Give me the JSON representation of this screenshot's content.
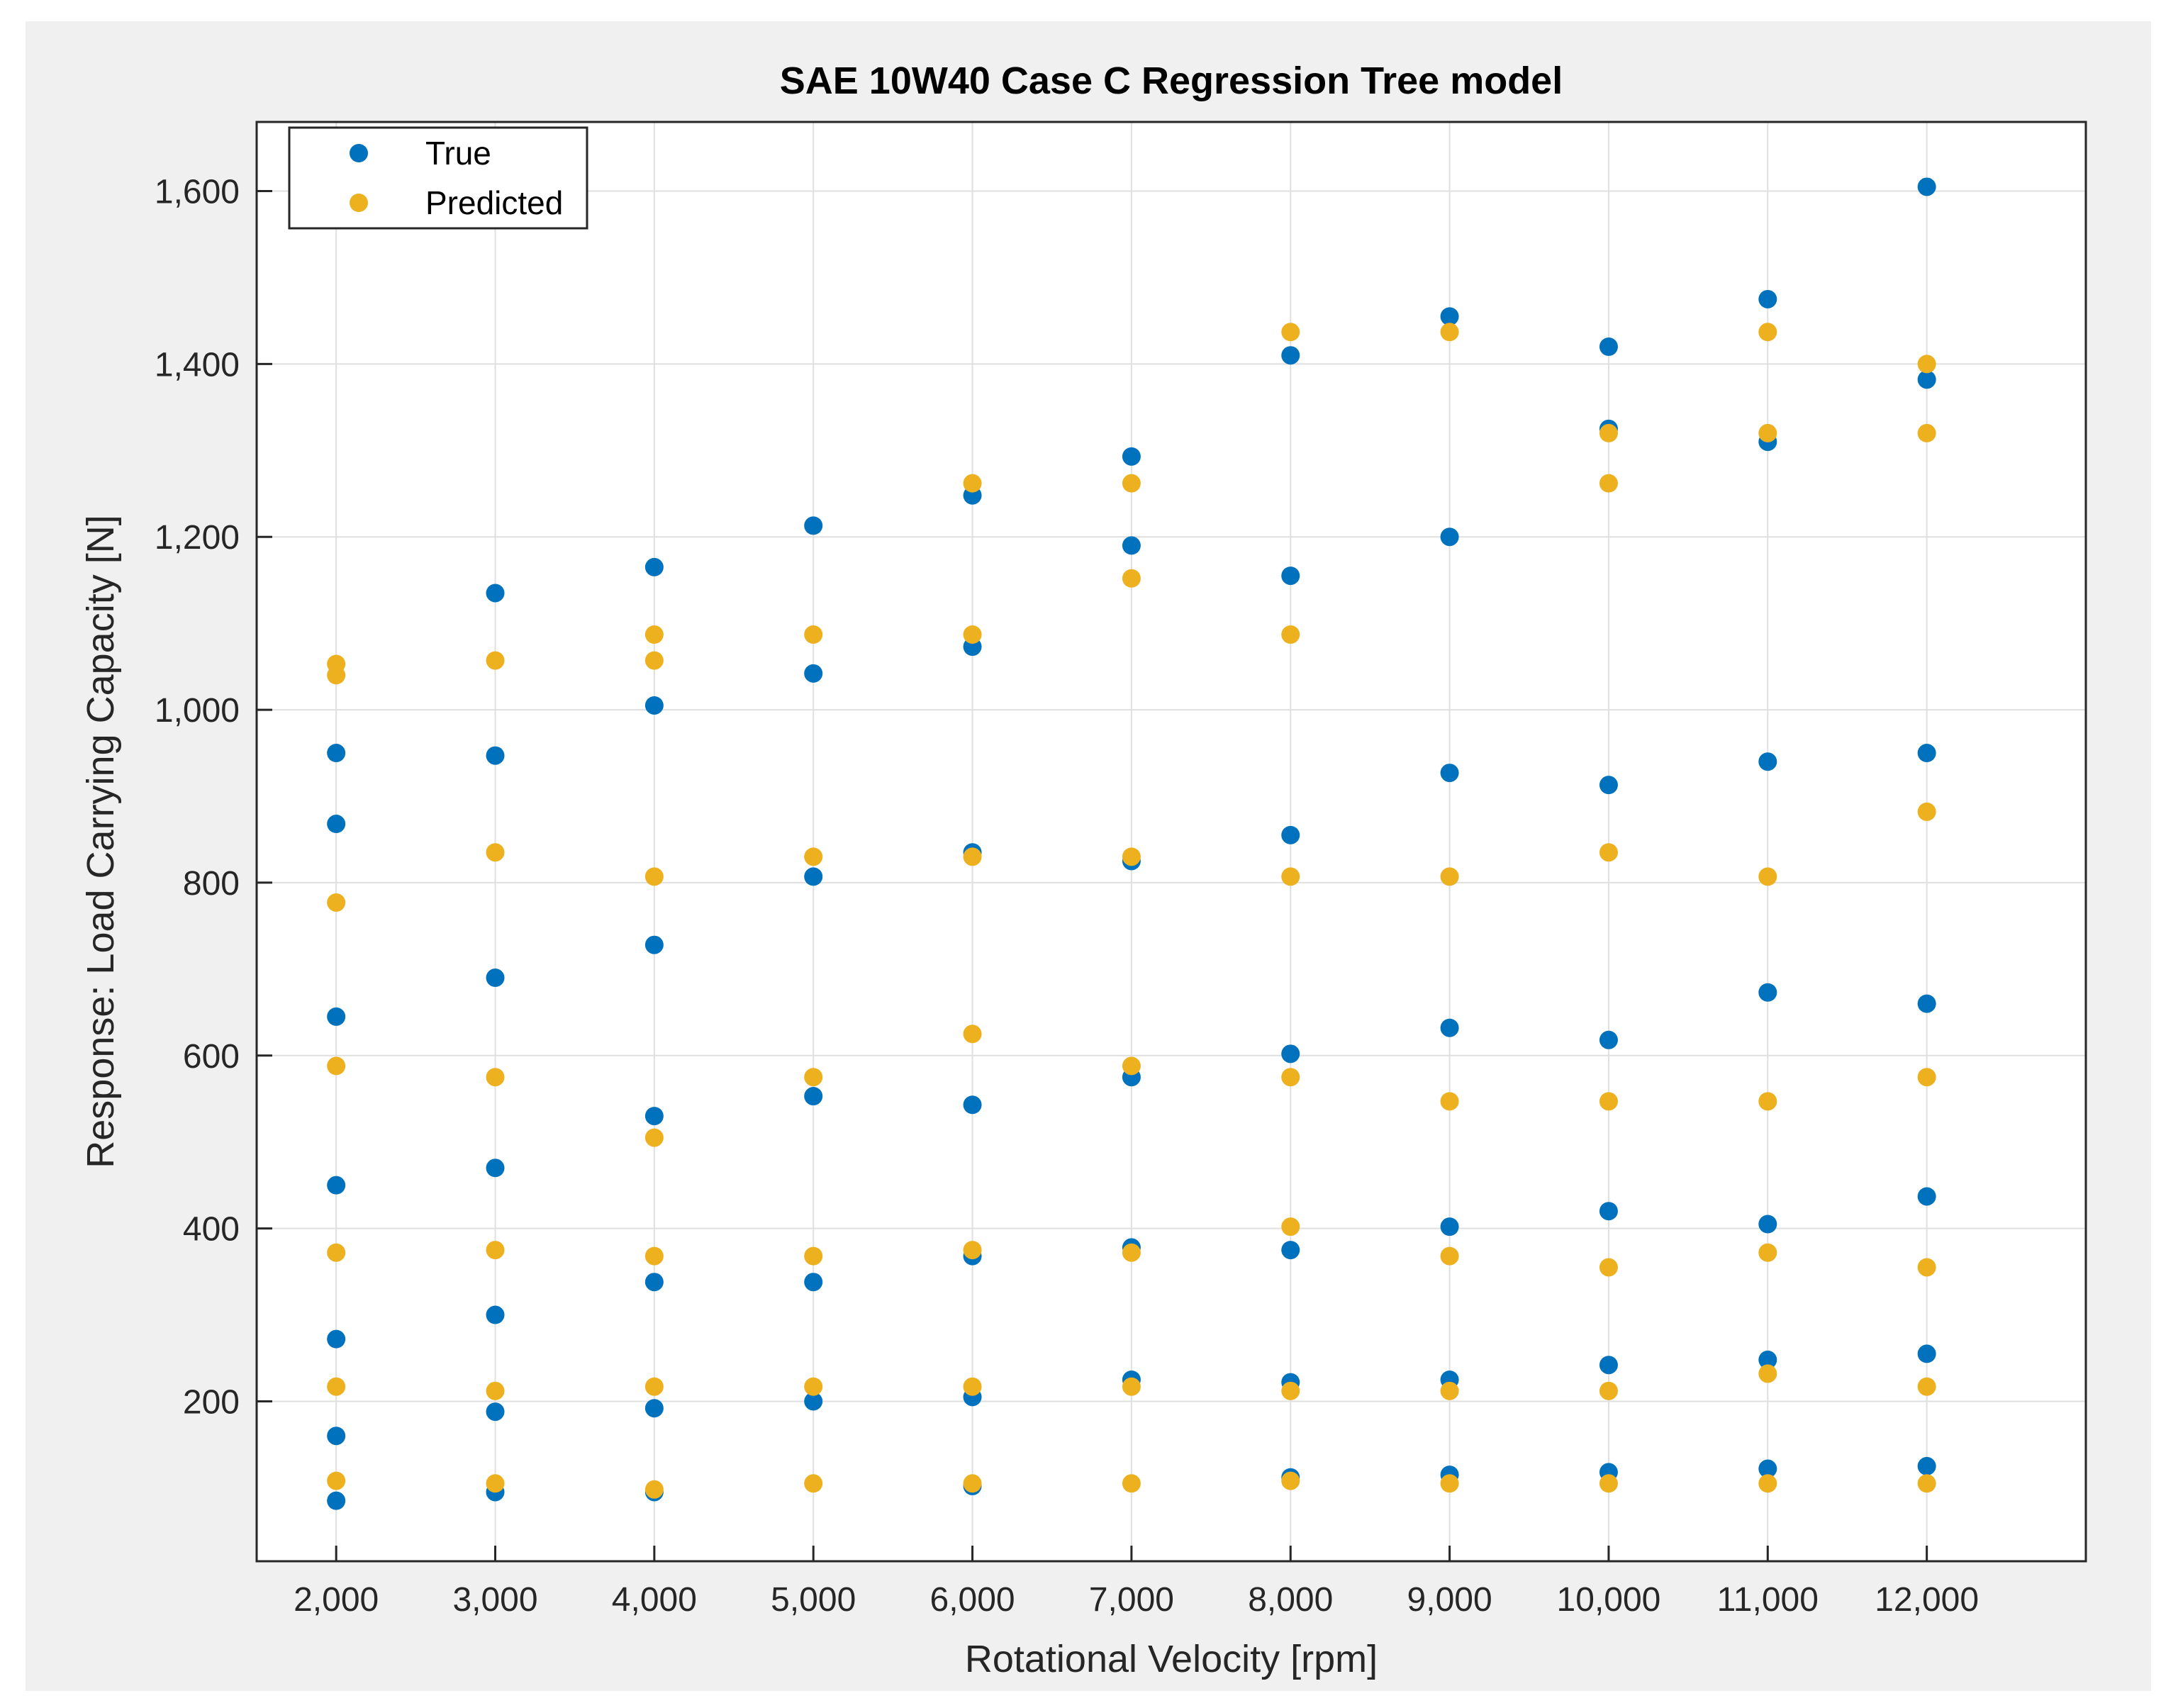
{
  "chart_data": {
    "type": "scatter",
    "title": "SAE 10W40 Case C Regression Tree model",
    "xlabel": "Rotational Velocity [rpm]",
    "ylabel": "Response: Load Carrying Capacity [N]",
    "xlim": [
      1500,
      13000
    ],
    "ylim": [
      15,
      1680
    ],
    "xticks": [
      2000,
      3000,
      4000,
      5000,
      6000,
      7000,
      8000,
      9000,
      10000,
      11000,
      12000
    ],
    "xtick_labels": [
      "2,000",
      "3,000",
      "4,000",
      "5,000",
      "6,000",
      "7,000",
      "8,000",
      "9,000",
      "10,000",
      "11,000",
      "12,000"
    ],
    "yticks": [
      200,
      400,
      600,
      800,
      1000,
      1200,
      1400,
      1600
    ],
    "ytick_labels": [
      "200",
      "400",
      "600",
      "800",
      "1,000",
      "1,200",
      "1,400",
      "1,600"
    ],
    "grid": true,
    "legend_position": "top-left",
    "series": [
      {
        "name": "True",
        "color": "#0072bd",
        "points": [
          [
            2000,
            85
          ],
          [
            2000,
            160
          ],
          [
            2000,
            272
          ],
          [
            2000,
            450
          ],
          [
            2000,
            645
          ],
          [
            2000,
            868
          ],
          [
            2000,
            950
          ],
          [
            3000,
            95
          ],
          [
            3000,
            188
          ],
          [
            3000,
            300
          ],
          [
            3000,
            470
          ],
          [
            3000,
            690
          ],
          [
            3000,
            947
          ],
          [
            3000,
            1135
          ],
          [
            4000,
            95
          ],
          [
            4000,
            192
          ],
          [
            4000,
            338
          ],
          [
            4000,
            530
          ],
          [
            4000,
            728
          ],
          [
            4000,
            1005
          ],
          [
            4000,
            1165
          ],
          [
            5000,
            200
          ],
          [
            5000,
            338
          ],
          [
            5000,
            553
          ],
          [
            5000,
            807
          ],
          [
            5000,
            1042
          ],
          [
            5000,
            1213
          ],
          [
            6000,
            102
          ],
          [
            6000,
            205
          ],
          [
            6000,
            368
          ],
          [
            6000,
            543
          ],
          [
            6000,
            835
          ],
          [
            6000,
            1073
          ],
          [
            6000,
            1248
          ],
          [
            7000,
            225
          ],
          [
            7000,
            378
          ],
          [
            7000,
            575
          ],
          [
            7000,
            825
          ],
          [
            7000,
            1190
          ],
          [
            7000,
            1293
          ],
          [
            8000,
            112
          ],
          [
            8000,
            222
          ],
          [
            8000,
            375
          ],
          [
            8000,
            602
          ],
          [
            8000,
            855
          ],
          [
            8000,
            1155
          ],
          [
            8000,
            1410
          ],
          [
            9000,
            115
          ],
          [
            9000,
            225
          ],
          [
            9000,
            402
          ],
          [
            9000,
            632
          ],
          [
            9000,
            927
          ],
          [
            9000,
            1200
          ],
          [
            9000,
            1455
          ],
          [
            10000,
            118
          ],
          [
            10000,
            242
          ],
          [
            10000,
            420
          ],
          [
            10000,
            618
          ],
          [
            10000,
            913
          ],
          [
            10000,
            1325
          ],
          [
            10000,
            1420
          ],
          [
            11000,
            122
          ],
          [
            11000,
            248
          ],
          [
            11000,
            405
          ],
          [
            11000,
            673
          ],
          [
            11000,
            940
          ],
          [
            11000,
            1310
          ],
          [
            11000,
            1475
          ],
          [
            12000,
            125
          ],
          [
            12000,
            255
          ],
          [
            12000,
            437
          ],
          [
            12000,
            660
          ],
          [
            12000,
            950
          ],
          [
            12000,
            1382
          ],
          [
            12000,
            1605
          ]
        ]
      },
      {
        "name": "Predicted",
        "color": "#edb120",
        "points": [
          [
            2000,
            108
          ],
          [
            2000,
            217
          ],
          [
            2000,
            372
          ],
          [
            2000,
            588
          ],
          [
            2000,
            777
          ],
          [
            2000,
            1040
          ],
          [
            2000,
            1053
          ],
          [
            3000,
            105
          ],
          [
            3000,
            212
          ],
          [
            3000,
            375
          ],
          [
            3000,
            575
          ],
          [
            3000,
            835
          ],
          [
            3000,
            1057
          ],
          [
            4000,
            98
          ],
          [
            4000,
            217
          ],
          [
            4000,
            368
          ],
          [
            4000,
            505
          ],
          [
            4000,
            807
          ],
          [
            4000,
            1057
          ],
          [
            4000,
            1087
          ],
          [
            5000,
            105
          ],
          [
            5000,
            217
          ],
          [
            5000,
            368
          ],
          [
            5000,
            575
          ],
          [
            5000,
            830
          ],
          [
            5000,
            1087
          ],
          [
            6000,
            105
          ],
          [
            6000,
            217
          ],
          [
            6000,
            375
          ],
          [
            6000,
            625
          ],
          [
            6000,
            830
          ],
          [
            6000,
            1087
          ],
          [
            6000,
            1262
          ],
          [
            7000,
            105
          ],
          [
            7000,
            217
          ],
          [
            7000,
            372
          ],
          [
            7000,
            588
          ],
          [
            7000,
            830
          ],
          [
            7000,
            1152
          ],
          [
            7000,
            1262
          ],
          [
            8000,
            108
          ],
          [
            8000,
            212
          ],
          [
            8000,
            402
          ],
          [
            8000,
            575
          ],
          [
            8000,
            807
          ],
          [
            8000,
            1087
          ],
          [
            8000,
            1437
          ],
          [
            9000,
            105
          ],
          [
            9000,
            212
          ],
          [
            9000,
            368
          ],
          [
            9000,
            547
          ],
          [
            9000,
            807
          ],
          [
            9000,
            1437
          ],
          [
            10000,
            105
          ],
          [
            10000,
            212
          ],
          [
            10000,
            355
          ],
          [
            10000,
            547
          ],
          [
            10000,
            835
          ],
          [
            10000,
            1262
          ],
          [
            10000,
            1320
          ],
          [
            11000,
            105
          ],
          [
            11000,
            232
          ],
          [
            11000,
            372
          ],
          [
            11000,
            547
          ],
          [
            11000,
            807
          ],
          [
            11000,
            1320
          ],
          [
            11000,
            1437
          ],
          [
            12000,
            105
          ],
          [
            12000,
            217
          ],
          [
            12000,
            355
          ],
          [
            12000,
            575
          ],
          [
            12000,
            882
          ],
          [
            12000,
            1320
          ],
          [
            12000,
            1400
          ]
        ]
      }
    ]
  }
}
